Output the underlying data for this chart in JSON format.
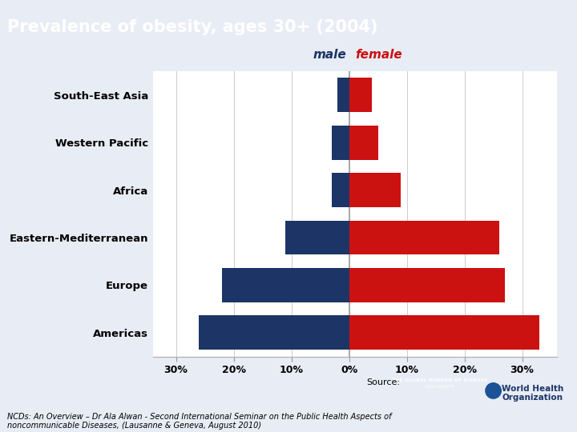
{
  "title": "Prevalence of obesity, ages 30+ (2004)",
  "title_bg": "#3B6DB5",
  "title_color": "white",
  "categories": [
    "Americas",
    "Europe",
    "Eastern-Mediterranean",
    "Africa",
    "Western Pacific",
    "South-East Asia"
  ],
  "male_values": [
    26,
    22,
    11,
    3,
    3,
    2
  ],
  "female_values": [
    33,
    27,
    26,
    9,
    5,
    4
  ],
  "male_color": "#1C3566",
  "female_color": "#CC1111",
  "male_label": "male",
  "female_label": "female",
  "male_label_color": "#1C3566",
  "female_label_color": "#CC1111",
  "xlim": [
    -34,
    36
  ],
  "xticks": [
    -30,
    -20,
    -10,
    0,
    10,
    20,
    30
  ],
  "xtick_labels": [
    "30%",
    "20%",
    "10%",
    "0%",
    "10%",
    "20%",
    "30%"
  ],
  "grid_color": "#cccccc",
  "background_color": "#e8ecf5",
  "chart_bg": "white",
  "footer_text": "NCDs: An Overview – Dr Ala Alwan - Second International Seminar on the Public Health Aspects of\nnoncommunicable Diseases, (Lausanne & Geneva, August 2010)",
  "source_text": "Source:"
}
